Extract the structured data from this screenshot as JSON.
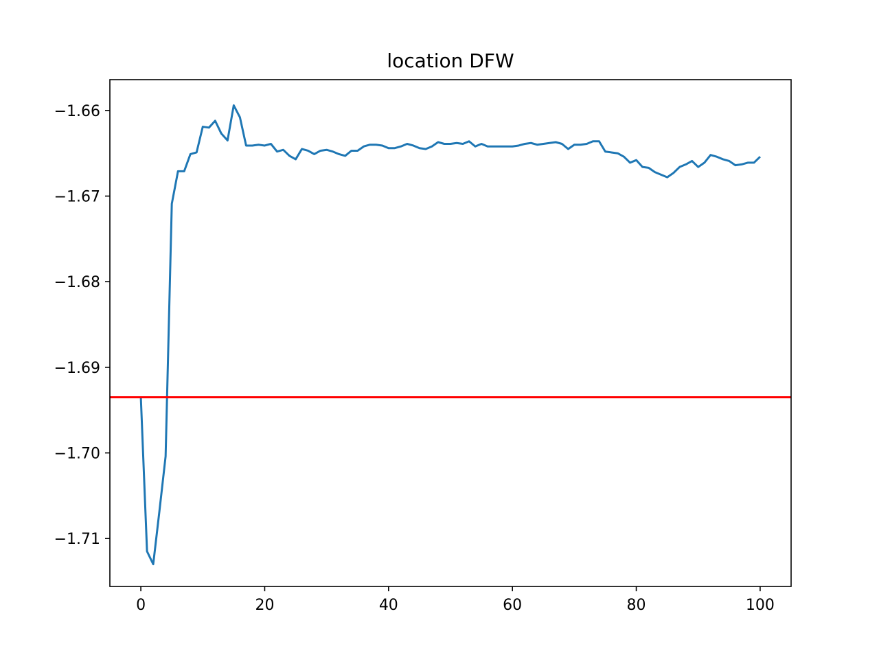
{
  "chart_data": {
    "type": "line",
    "title": "location DFW",
    "xlabel": "",
    "ylabel": "",
    "xlim": [
      -5,
      105
    ],
    "ylim": [
      -1.7156,
      -1.6564
    ],
    "xticks": [
      0,
      20,
      40,
      60,
      80,
      100
    ],
    "xtick_labels": [
      "0",
      "20",
      "40",
      "60",
      "80",
      "100"
    ],
    "yticks": [
      -1.66,
      -1.67,
      -1.68,
      -1.69,
      -1.7,
      -1.71
    ],
    "ytick_labels": [
      "−1.66",
      "−1.67",
      "−1.68",
      "−1.69",
      "−1.70",
      "−1.71"
    ],
    "grid": false,
    "series": [
      {
        "color": "#1f77b4",
        "x": [
          0,
          1,
          2,
          3,
          4,
          5,
          6,
          7,
          8,
          9,
          10,
          11,
          12,
          13,
          14,
          15,
          16,
          17,
          18,
          19,
          20,
          21,
          22,
          23,
          24,
          25,
          26,
          27,
          28,
          29,
          30,
          31,
          32,
          33,
          34,
          35,
          36,
          37,
          38,
          39,
          40,
          41,
          42,
          43,
          44,
          45,
          46,
          47,
          48,
          49,
          50,
          51,
          52,
          53,
          54,
          55,
          56,
          57,
          58,
          59,
          60,
          61,
          62,
          63,
          64,
          65,
          66,
          67,
          68,
          69,
          70,
          71,
          72,
          73,
          74,
          75,
          76,
          77,
          78,
          79,
          80,
          81,
          82,
          83,
          84,
          85,
          86,
          87,
          88,
          89,
          90,
          91,
          92,
          93,
          94,
          95,
          96,
          97,
          98,
          99,
          100
        ],
        "values": [
          -1.6935,
          -1.7115,
          -1.713,
          -1.7068,
          -1.7004,
          -1.6709,
          -1.6671,
          -1.6671,
          -1.6651,
          -1.6649,
          -1.6619,
          -1.662,
          -1.6612,
          -1.6627,
          -1.6635,
          -1.6594,
          -1.6608,
          -1.6641,
          -1.6641,
          -1.664,
          -1.6641,
          -1.6639,
          -1.6648,
          -1.6646,
          -1.6653,
          -1.6657,
          -1.6645,
          -1.6647,
          -1.6651,
          -1.6647,
          -1.6646,
          -1.6648,
          -1.6651,
          -1.6653,
          -1.6647,
          -1.6647,
          -1.6642,
          -1.664,
          -1.664,
          -1.6641,
          -1.6644,
          -1.6644,
          -1.6642,
          -1.6639,
          -1.6641,
          -1.6644,
          -1.6645,
          -1.6642,
          -1.6637,
          -1.6639,
          -1.6639,
          -1.6638,
          -1.6639,
          -1.6636,
          -1.6642,
          -1.6639,
          -1.6642,
          -1.6642,
          -1.6642,
          -1.6642,
          -1.6642,
          -1.6641,
          -1.6639,
          -1.6638,
          -1.664,
          -1.6639,
          -1.6638,
          -1.6637,
          -1.6639,
          -1.6645,
          -1.664,
          -1.664,
          -1.6639,
          -1.6636,
          -1.6636,
          -1.6648,
          -1.6649,
          -1.665,
          -1.6654,
          -1.6661,
          -1.6658,
          -1.6666,
          -1.6667,
          -1.6672,
          -1.6675,
          -1.6678,
          -1.6673,
          -1.6666,
          -1.6663,
          -1.6659,
          -1.6666,
          -1.6661,
          -1.6652,
          -1.6654,
          -1.6657,
          -1.6659,
          -1.6664,
          -1.6663,
          -1.6661,
          -1.6661,
          -1.6654
        ]
      },
      {
        "color": "#ff0000",
        "type": "hline",
        "y": -1.6935
      }
    ]
  }
}
